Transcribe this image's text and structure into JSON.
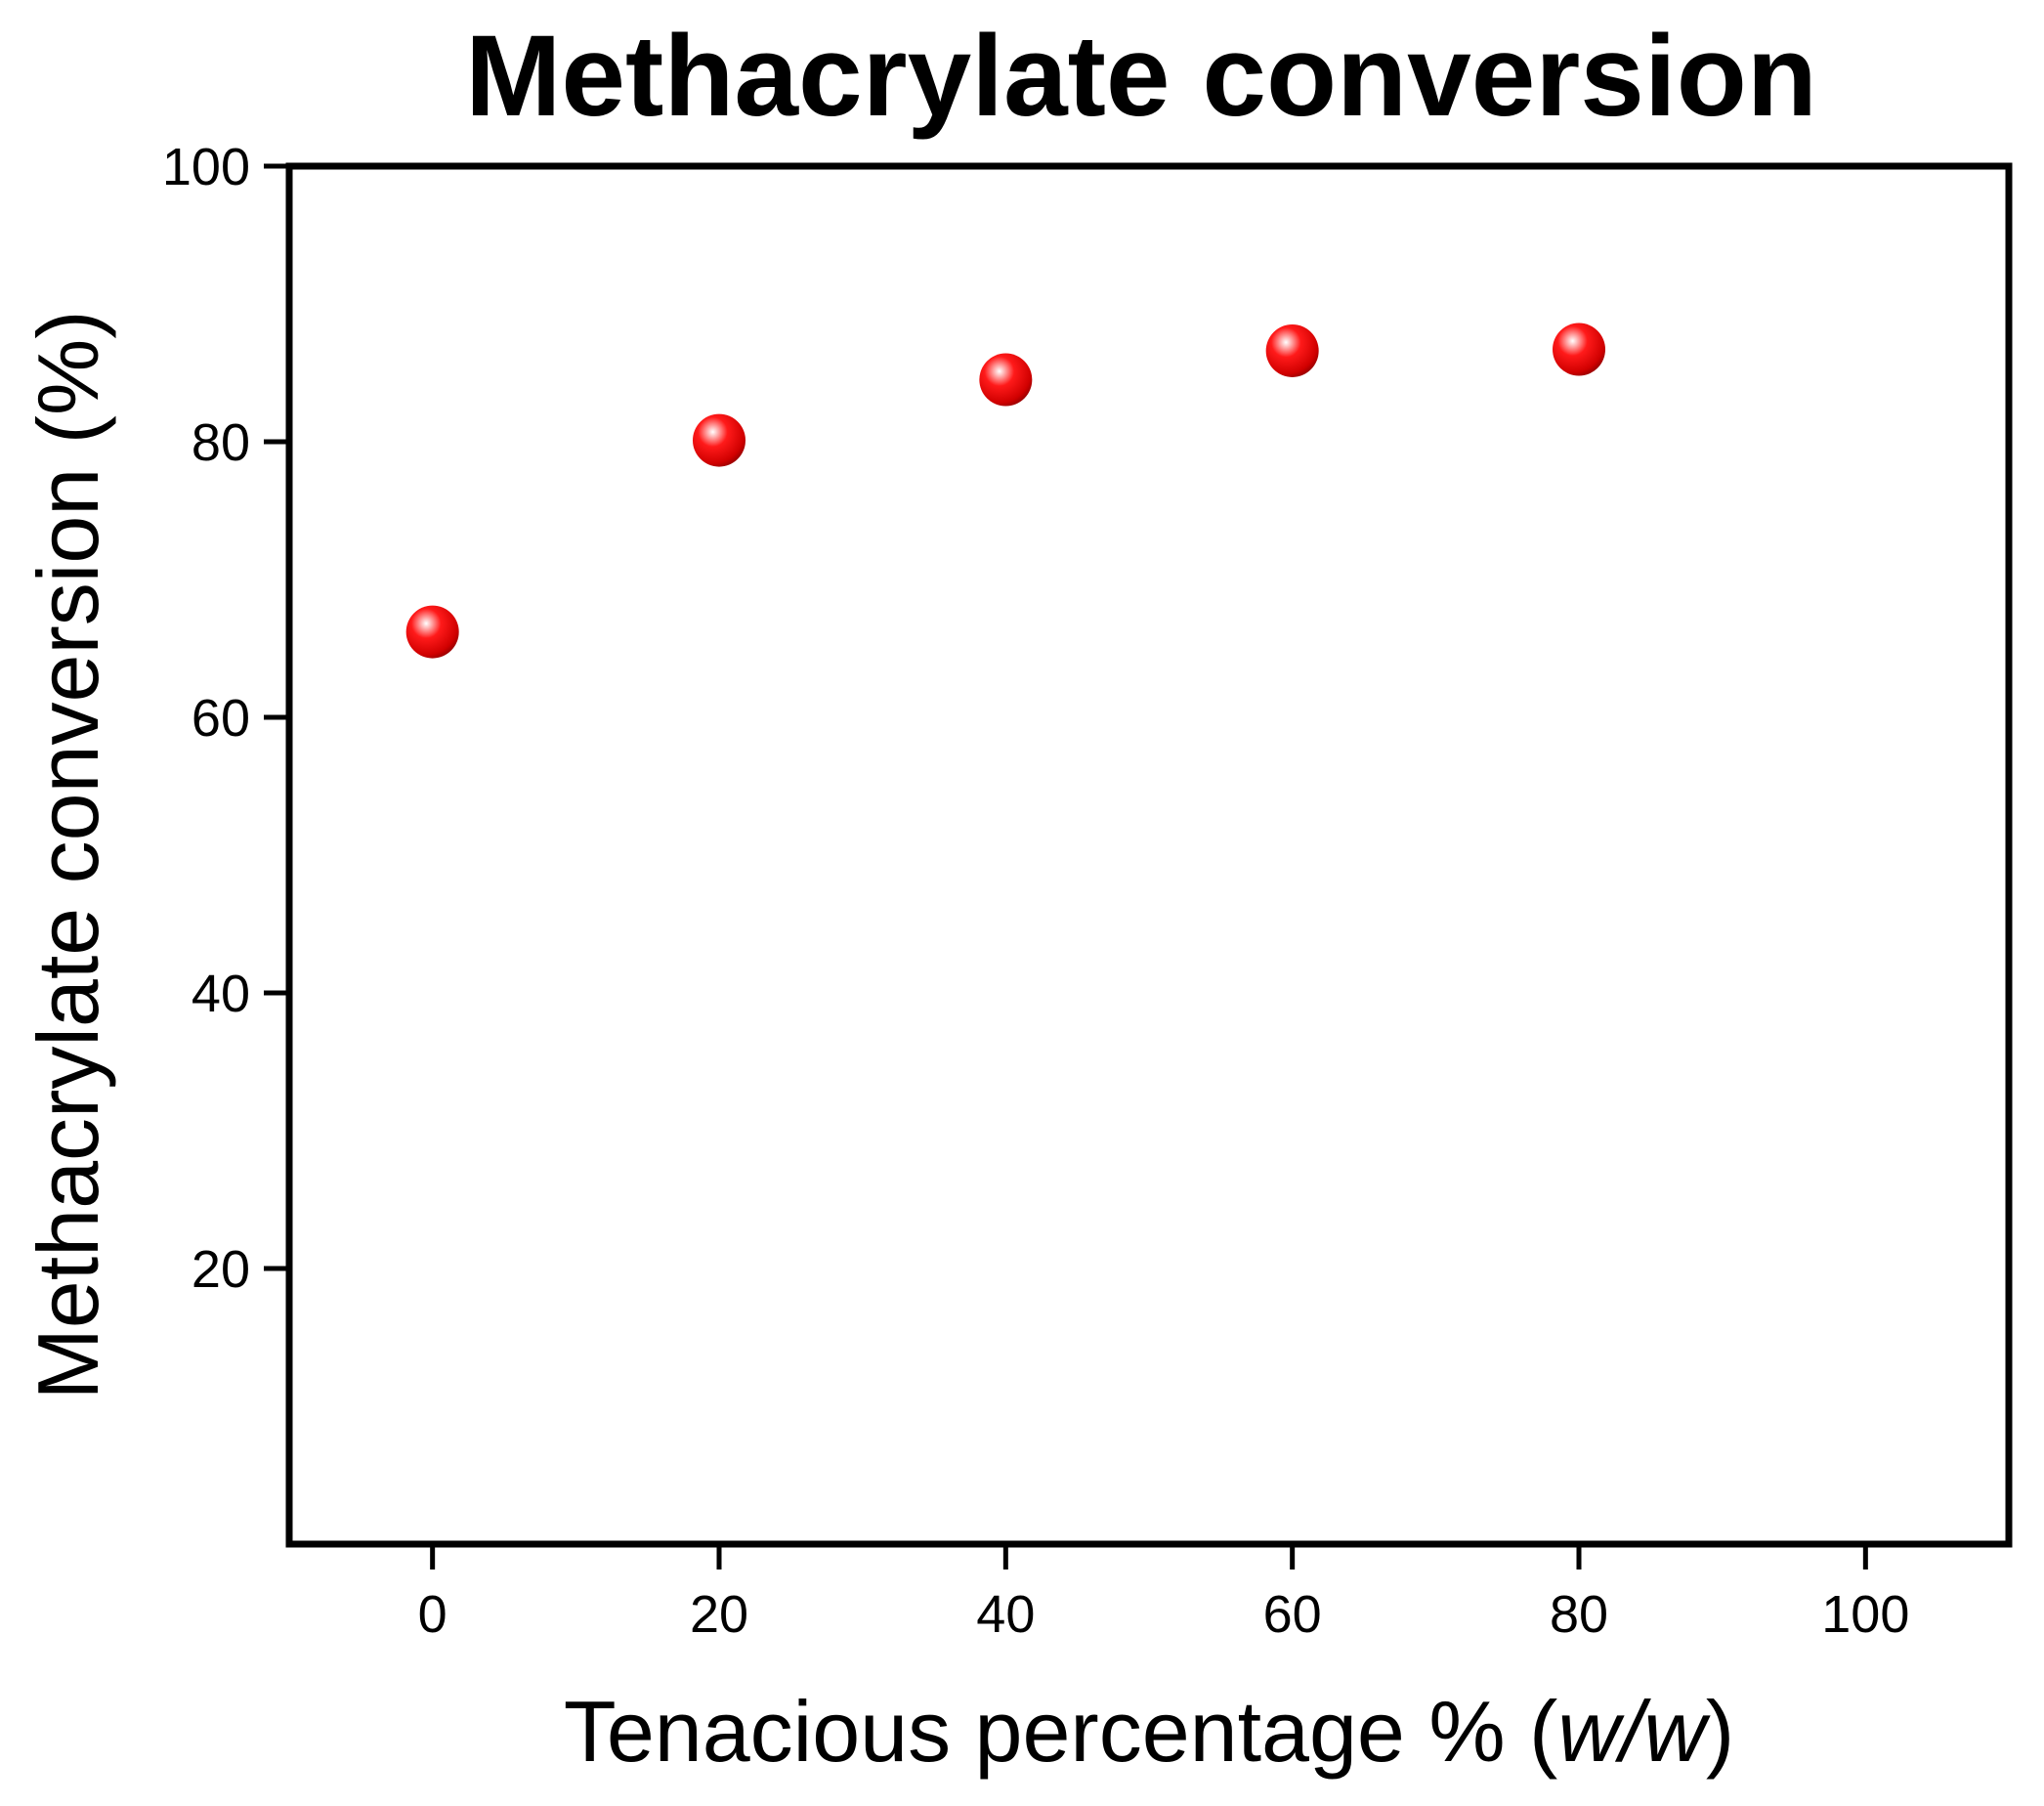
{
  "chart_data": {
    "type": "scatter",
    "title": "Methacrylate conversion",
    "xlabel": "Tenacious percentage % (",
    "xlabel_italic": "w/w",
    "xlabel_suffix": ")",
    "ylabel": "Methacrylate conversion (%)",
    "xlim": [
      -10,
      110
    ],
    "ylim": [
      0,
      100
    ],
    "xticks": [
      0,
      20,
      40,
      60,
      80,
      100
    ],
    "yticks": [
      20,
      40,
      60,
      80,
      100
    ],
    "series": [
      {
        "name": "Methacrylate conversion",
        "color": "#e00000",
        "x": [
          0,
          20,
          40,
          60,
          80
        ],
        "y": [
          66.2,
          80.1,
          84.5,
          86.6,
          86.7
        ]
      }
    ],
    "grid": false,
    "legend": "none"
  }
}
